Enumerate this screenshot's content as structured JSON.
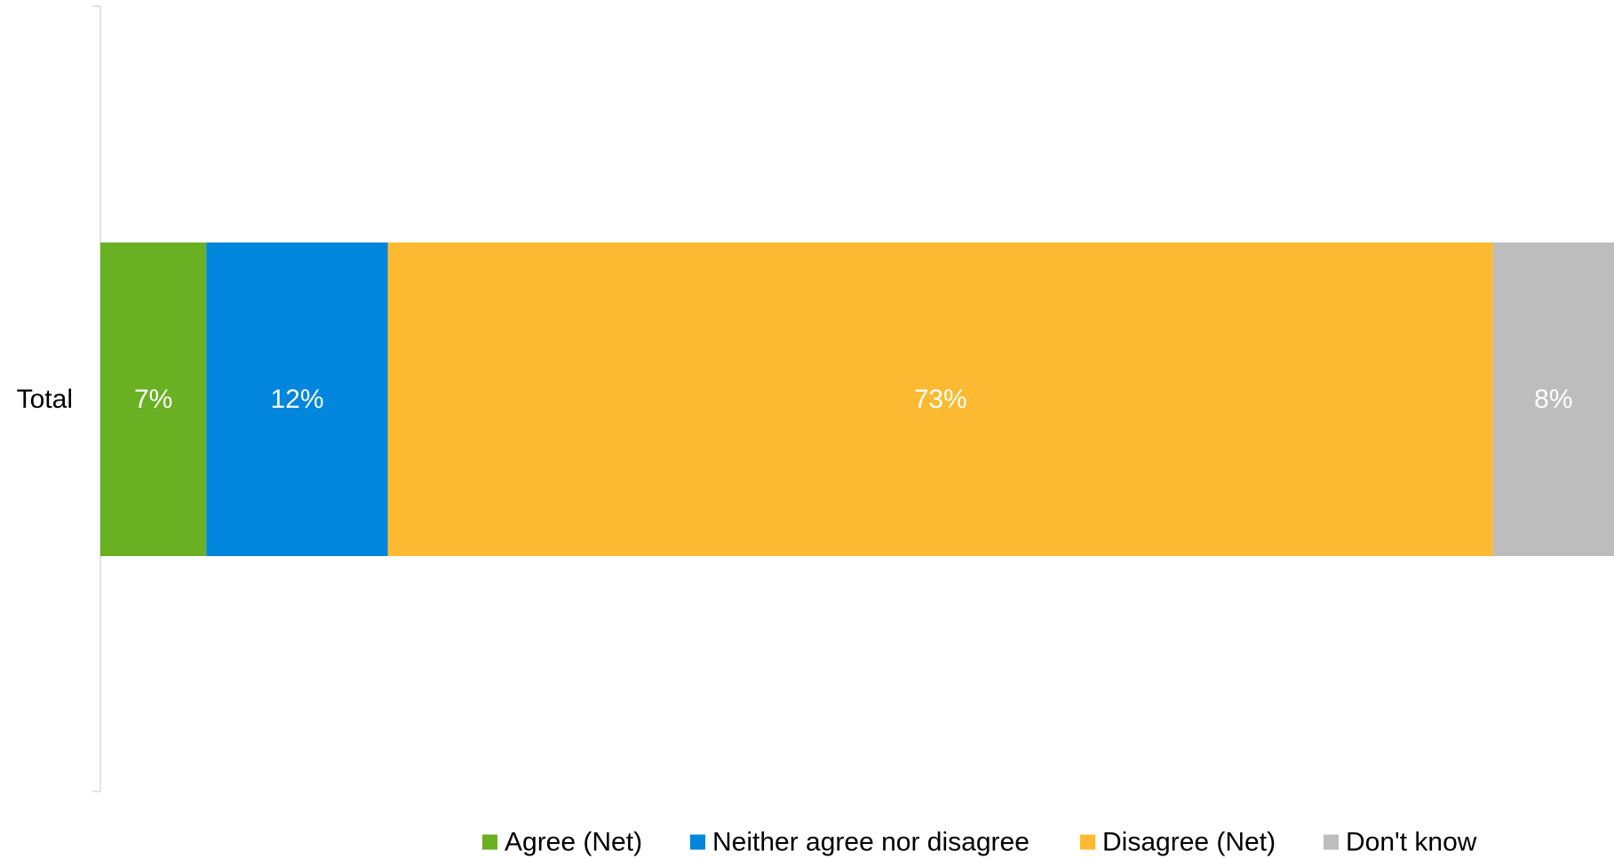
{
  "chart_data": {
    "type": "bar",
    "orientation": "horizontal",
    "stacked": true,
    "categories": [
      "Total"
    ],
    "series": [
      {
        "name": "Agree (Net)",
        "values": [
          7
        ],
        "label": "7%",
        "color": "#6ab023"
      },
      {
        "name": "Neither agree nor disagree",
        "values": [
          12
        ],
        "label": "12%",
        "color": "#0086dc"
      },
      {
        "name": "Disagree (Net)",
        "values": [
          73
        ],
        "label": "73%",
        "color": "#fbba31"
      },
      {
        "name": "Don't know",
        "values": [
          8
        ],
        "label": "8%",
        "color": "#bdbdbd"
      }
    ],
    "xlim": [
      0,
      100
    ],
    "title": "",
    "xlabel": "",
    "ylabel": "",
    "grid": false,
    "legend_position": "bottom"
  }
}
